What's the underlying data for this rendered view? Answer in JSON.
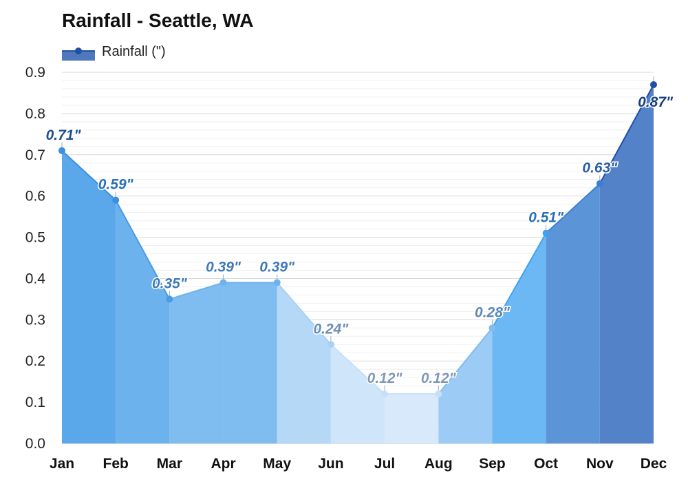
{
  "title": "Rainfall - Seattle, WA",
  "legend": {
    "label": "Rainfall (\")",
    "color": "#2f5ea8"
  },
  "chart_data": {
    "type": "area",
    "title": "Rainfall - Seattle, WA",
    "xlabel": "",
    "ylabel": "",
    "ylim": [
      0,
      0.9
    ],
    "yticks": [
      "0.0",
      "0.1",
      "0.2",
      "0.3",
      "0.4",
      "0.5",
      "0.6",
      "0.7",
      "0.8",
      "0.9"
    ],
    "grid": true,
    "legend_position": "top-left",
    "categories": [
      "Jan",
      "Feb",
      "Mar",
      "Apr",
      "May",
      "Jun",
      "Jul",
      "Aug",
      "Sep",
      "Oct",
      "Nov",
      "Dec"
    ],
    "series": [
      {
        "name": "Rainfall (\")",
        "values": [
          0.71,
          0.59,
          0.35,
          0.39,
          0.39,
          0.24,
          0.12,
          0.12,
          0.28,
          0.51,
          0.63,
          0.87
        ],
        "labels": [
          "0.71\"",
          "0.59\"",
          "0.35\"",
          "0.39\"",
          "0.39\"",
          "0.24\"",
          "0.12\"",
          "0.12\"",
          "0.28\"",
          "0.51\"",
          "0.63\"",
          "0.87\""
        ]
      }
    ],
    "segment_colors": [
      "#5aa7ea",
      "#6cb3ee",
      "#7fbcf0",
      "#7fbcf0",
      "#b5d8f7",
      "#cfe5fa",
      "#d7e9fb",
      "#9ccbf5",
      "#6cb8f4",
      "#5b95d8",
      "#5482c8"
    ],
    "point_colors": [
      "#3b8ee0",
      "#3b8ee0",
      "#4a9ae6",
      "#6cb3ee",
      "#6cb3ee",
      "#a9d0f4",
      "#c6e0f8",
      "#c6e0f8",
      "#7fbcf0",
      "#3ea2f0",
      "#3b7fd4",
      "#1f4fa8"
    ],
    "label_colors": [
      "#1f4f8f",
      "#2a6fba",
      "#3f7ab8",
      "#3f7ab8",
      "#3f7ab8",
      "#6a8fb4",
      "#7f98b4",
      "#7f98b4",
      "#5a87b8",
      "#2a6fba",
      "#2a5fa8",
      "#163f80"
    ]
  }
}
